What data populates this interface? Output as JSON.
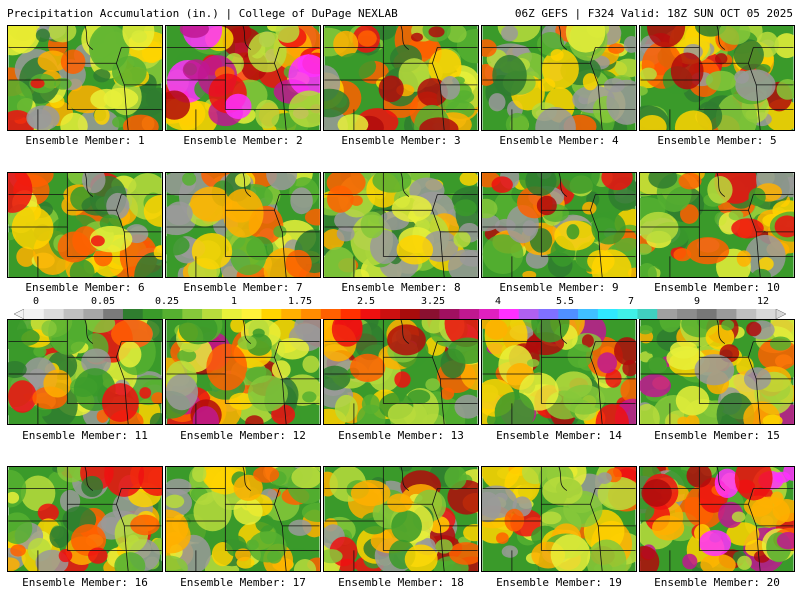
{
  "header": {
    "left": "Precipitation Accumulation (in.) | College of DuPage NEXLAB",
    "right": "06Z GEFS | F324 Valid: 18Z SUN OCT 05 2025"
  },
  "colorbar": {
    "labels": [
      "0",
      "0.05",
      "0.25",
      "1",
      "1.75",
      "2.5",
      "3.25",
      "4",
      "5.5",
      "7",
      "9",
      "12"
    ],
    "colors": [
      "#f2f2f2",
      "#dcdcdc",
      "#c0c0c0",
      "#a6a6a6",
      "#7a7a7a",
      "#2f7d2f",
      "#3a9a2a",
      "#56b030",
      "#86c83a",
      "#b8dc3c",
      "#e8f03a",
      "#fff23a",
      "#ffd400",
      "#ffb000",
      "#ff8c00",
      "#ff6000",
      "#ff3000",
      "#ee1010",
      "#cc1010",
      "#a80c0c",
      "#8a1030",
      "#a01060",
      "#c01890",
      "#e020c0",
      "#ff30ff",
      "#b060f0",
      "#8070ff",
      "#5090ff",
      "#40c0ff",
      "#30e8ff",
      "#40f0e8",
      "#40d0c0",
      "#a0a0a0",
      "#8c8c8c",
      "#777777",
      "#9a9a9a",
      "#bfbfbf",
      "#d8d8d8"
    ]
  },
  "members": [
    {
      "label": "Ensemble Member: 1",
      "intensity": 0.45
    },
    {
      "label": "Ensemble Member: 2",
      "intensity": 0.85
    },
    {
      "label": "Ensemble Member: 3",
      "intensity": 0.55
    },
    {
      "label": "Ensemble Member: 4",
      "intensity": 0.35
    },
    {
      "label": "Ensemble Member: 5",
      "intensity": 0.6
    },
    {
      "label": "Ensemble Member: 6",
      "intensity": 0.5
    },
    {
      "label": "Ensemble Member: 7",
      "intensity": 0.35
    },
    {
      "label": "Ensemble Member: 8",
      "intensity": 0.3
    },
    {
      "label": "Ensemble Member: 9",
      "intensity": 0.55
    },
    {
      "label": "Ensemble Member: 10",
      "intensity": 0.5
    },
    {
      "label": "Ensemble Member: 11",
      "intensity": 0.4
    },
    {
      "label": "Ensemble Member: 12",
      "intensity": 0.65
    },
    {
      "label": "Ensemble Member: 13",
      "intensity": 0.55
    },
    {
      "label": "Ensemble Member: 14",
      "intensity": 0.75
    },
    {
      "label": "Ensemble Member: 15",
      "intensity": 0.65
    },
    {
      "label": "Ensemble Member: 16",
      "intensity": 0.45
    },
    {
      "label": "Ensemble Member: 17",
      "intensity": 0.35
    },
    {
      "label": "Ensemble Member: 18",
      "intensity": 0.55
    },
    {
      "label": "Ensemble Member: 19",
      "intensity": 0.4
    },
    {
      "label": "Ensemble Member: 20",
      "intensity": 0.8
    }
  ]
}
